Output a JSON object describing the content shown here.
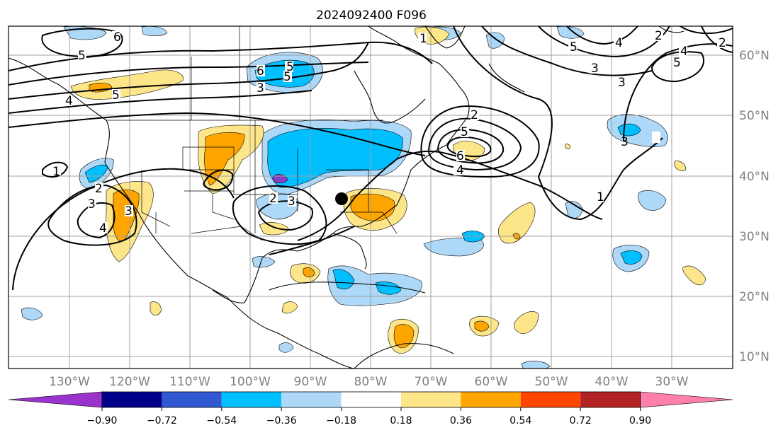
{
  "title": "2024092400 F096",
  "map": {
    "lat_labels": [
      "60°N",
      "50°N",
      "40°N",
      "30°N",
      "20°N",
      "10°N"
    ],
    "lon_labels": [
      "130°W",
      "120°W",
      "110°W",
      "100°W",
      "90°W",
      "80°W",
      "70°W",
      "60°W",
      "50°W",
      "40°W",
      "30°W"
    ],
    "contour_labels": [
      "6",
      "5",
      "5",
      "5",
      "4",
      "6",
      "5",
      "3",
      "3",
      "1",
      "3",
      "4",
      "3",
      "2",
      "2",
      "3",
      "6",
      "5",
      "4",
      "3",
      "3",
      "5",
      "4",
      "4",
      "2",
      "2",
      "1",
      "2",
      "1",
      "5"
    ],
    "marker": "black-dot-point"
  },
  "colorbar": {
    "ticks": [
      "−0.90",
      "−0.72",
      "−0.54",
      "−0.36",
      "−0.18",
      "0.18",
      "0.36",
      "0.54",
      "0.72",
      "0.90"
    ],
    "colors": [
      "#9933cc",
      "#00008b",
      "#3158d0",
      "#00bfff",
      "#add8f7",
      "#ffffff",
      "#fde68a",
      "#ffa500",
      "#ff4500",
      "#b22222",
      "#ff80ab"
    ]
  }
}
